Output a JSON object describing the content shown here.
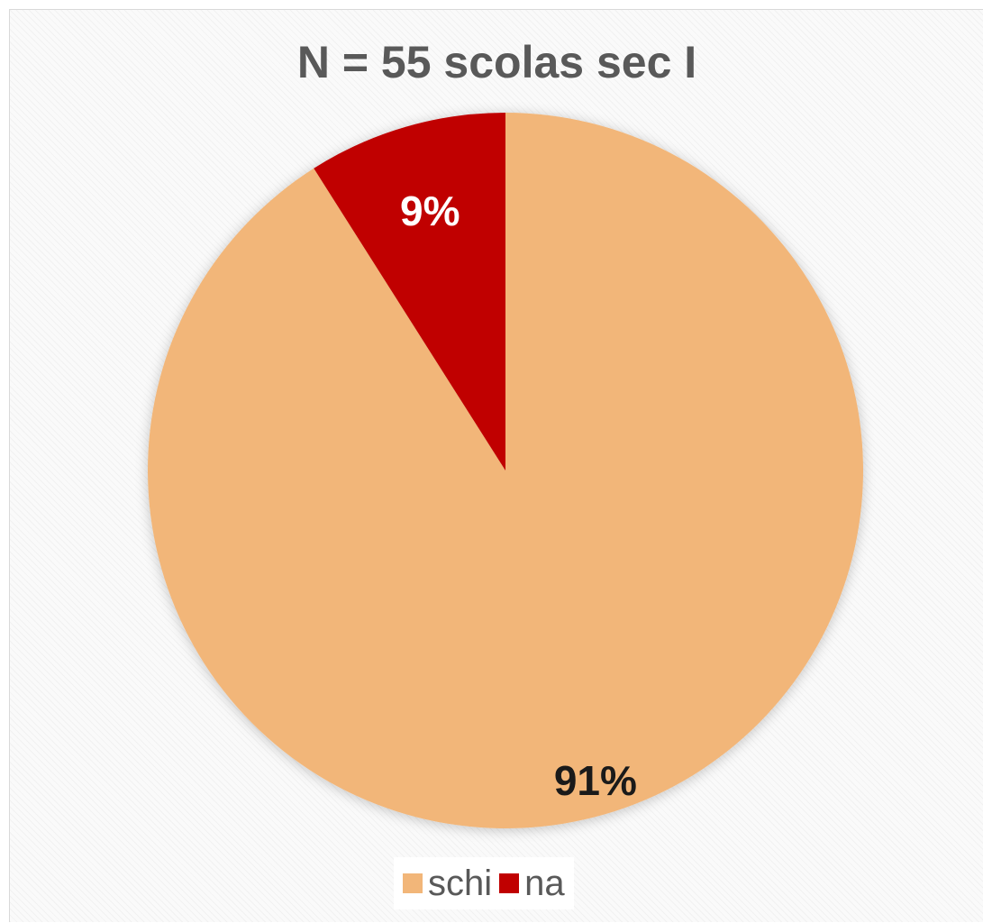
{
  "chart_data": {
    "type": "pie",
    "title": "N = 55 scolas sec I",
    "slices": [
      {
        "name": "schi",
        "value": 91,
        "label": "91%",
        "color": "#f2b679",
        "label_color": "#1a1a1a"
      },
      {
        "name": "na",
        "value": 9,
        "label": "9%",
        "color": "#c00000",
        "label_color": "#ffffff"
      }
    ],
    "legend_position": "bottom"
  }
}
